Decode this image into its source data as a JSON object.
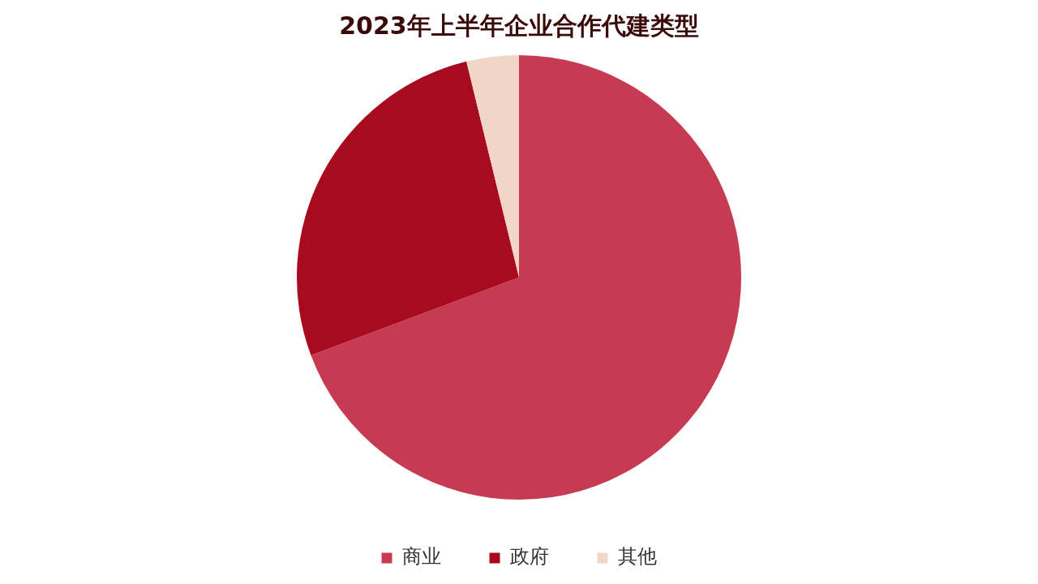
{
  "chart_data": {
    "type": "pie",
    "title": "2023年上半年企业合作代建类型",
    "categories": [
      "商业",
      "政府",
      "其他"
    ],
    "values": [
      69.3,
      26.9,
      3.8
    ],
    "colors": [
      "#c63b52",
      "#a80a1e",
      "#efd6c6"
    ],
    "legend": "bottom"
  }
}
